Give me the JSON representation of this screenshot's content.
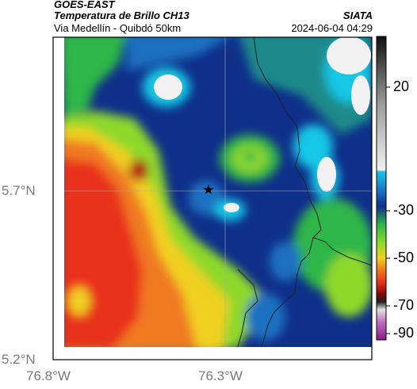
{
  "header": {
    "satellite": "GOES-EAST",
    "product": "Temperatura de Brillo CH13",
    "route": "Via Medellín - Quibdó 50km",
    "agency": "SIATA",
    "datetime": "2024-06-04 04:29"
  },
  "axes": {
    "lat_labels": [
      "5.7°N",
      "5.2°N"
    ],
    "lon_labels": [
      "76.8°W",
      "76.3°W"
    ]
  },
  "colorbar": {
    "labels": [
      "20",
      "-30",
      "-50",
      "-70",
      "-90"
    ]
  },
  "map": {
    "marker": "star",
    "colors": {
      "orange": "#f07a20",
      "red": "#e8331c",
      "yellow": "#f0d020",
      "lightgreen": "#8ed82a",
      "green": "#2fb64a",
      "teal": "#1a8a8a",
      "blue": "#1f6fc0",
      "navy": "#0f2f8a",
      "cyan": "#19c7e6",
      "white": "#f2f2f2"
    }
  }
}
